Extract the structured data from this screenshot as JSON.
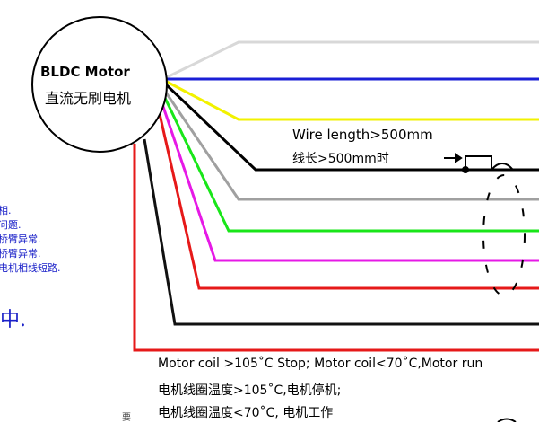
{
  "motor": {
    "title_en": "BLDC Motor",
    "title_cn": "直流无刷电机"
  },
  "wire_label": {
    "en": "Wire length>500mm",
    "cn": "线长>500mm时"
  },
  "notes": [
    "相.",
    "问题.",
    "桥臂异常.",
    "桥臂异常.",
    "电机相线短路."
  ],
  "big_char": "中.",
  "footer": {
    "line1": "Motor coil >105˚C Stop; Motor coil<70˚C,Motor run",
    "line2": "电机线圈温度>105˚C,电机停机;",
    "line3": "电机线圈温度<70˚C, 电机工作"
  },
  "stamp_char": "要",
  "colors": {
    "white": "#d8d8d8",
    "blue": "#1a1fd6",
    "yellow": "#f2f200",
    "green_light": "#46d246",
    "black": "#000000",
    "gray": "#a0a0a0",
    "green": "#19e619",
    "magenta": "#e619e6",
    "red": "#e61919",
    "black2": "#111111",
    "red2": "#e61919"
  }
}
